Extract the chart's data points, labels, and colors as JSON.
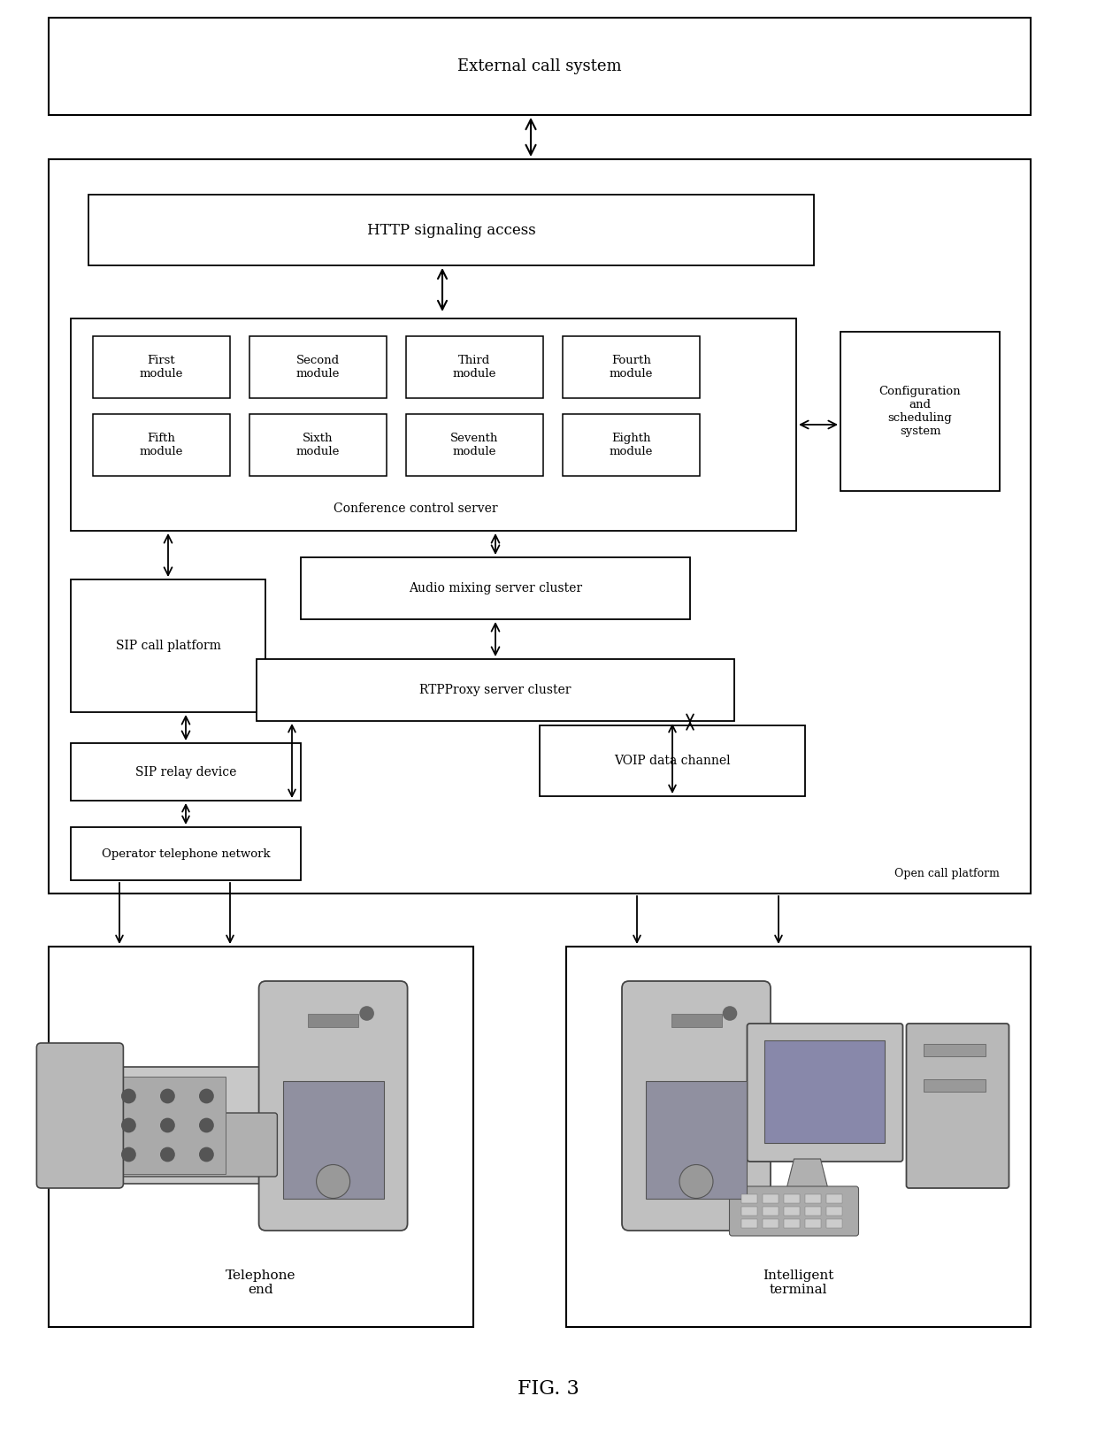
{
  "fig_width": 12.4,
  "fig_height": 16.3,
  "bg_color": "#ffffff",
  "title": "FIG. 3",
  "external_call_system": "External call system",
  "http_signaling": "HTTP signaling access",
  "modules_row1": [
    "First\nmodule",
    "Second\nmodule",
    "Third\nmodule",
    "Fourth\nmodule"
  ],
  "modules_row2": [
    "Fifth\nmodule",
    "Sixth\nmodule",
    "Seventh\nmodule",
    "Eighth\nmodule"
  ],
  "conference_server_label": "Conference control server",
  "config_system": "Configuration\nand\nscheduling\nsystem",
  "sip_call_platform": "SIP call platform",
  "audio_mixing": "Audio mixing server cluster",
  "rtpproxy": "RTPProxy server cluster",
  "sip_relay": "SIP relay device",
  "voip_channel": "VOIP data channel",
  "operator_network": "Operator telephone network",
  "open_call_platform": "Open call platform",
  "telephone_end": "Telephone\nend",
  "intelligent_terminal": "Intelligent\nterminal"
}
